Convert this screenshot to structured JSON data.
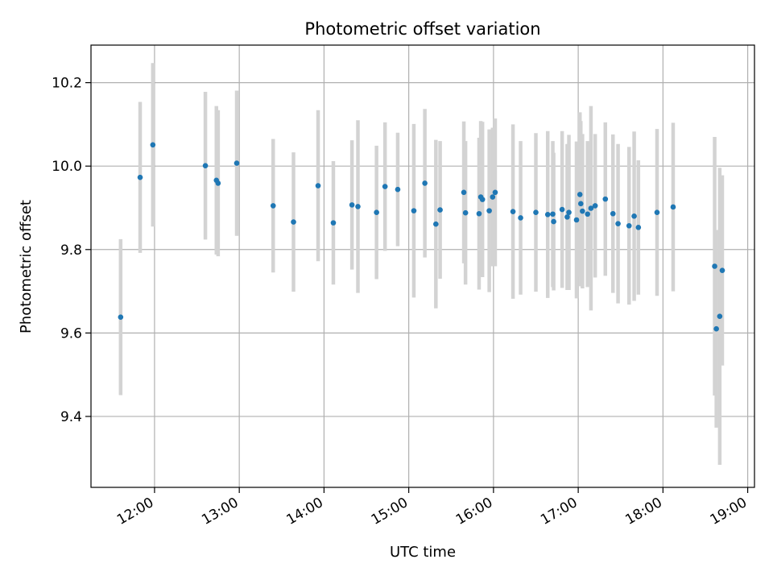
{
  "chart_data": {
    "type": "scatter",
    "title": "Photometric offset variation",
    "xlabel": "UTC time",
    "ylabel": "Photometric offset",
    "grid": true,
    "x_unit": "hours (UTC)",
    "xlim": [
      11.25,
      19.08
    ],
    "ylim": [
      9.23,
      10.29
    ],
    "x_ticks": [
      12,
      13,
      14,
      15,
      16,
      17,
      18,
      19
    ],
    "x_tick_labels": [
      "12:00",
      "13:00",
      "14:00",
      "15:00",
      "16:00",
      "17:00",
      "18:00",
      "19:00"
    ],
    "y_ticks": [
      9.4,
      9.6,
      9.8,
      10.0,
      10.2
    ],
    "y_tick_labels": [
      "9.4",
      "9.6",
      "9.8",
      "10.0",
      "10.2"
    ],
    "colors": {
      "point": "#1f77b4",
      "errorbar": "#d3d3d3",
      "grid": "#b0b0b0"
    },
    "series": [
      {
        "name": "Photometric offset",
        "x": [
          11.6,
          11.83,
          11.98,
          12.6,
          12.73,
          12.75,
          12.97,
          13.4,
          13.64,
          13.93,
          14.11,
          14.33,
          14.4,
          14.62,
          14.72,
          14.87,
          15.06,
          15.19,
          15.32,
          15.37,
          15.65,
          15.67,
          15.83,
          15.85,
          15.87,
          15.95,
          15.99,
          16.02,
          16.23,
          16.32,
          16.5,
          16.64,
          16.7,
          16.71,
          16.81,
          16.87,
          16.89,
          16.98,
          17.02,
          17.03,
          17.05,
          17.11,
          17.15,
          17.2,
          17.32,
          17.41,
          17.47,
          17.6,
          17.66,
          17.71,
          17.93,
          18.12,
          18.61,
          18.63,
          18.67,
          18.7
        ],
        "y": [
          9.638,
          9.973,
          10.051,
          10.001,
          9.966,
          9.959,
          10.007,
          9.905,
          9.866,
          9.953,
          9.864,
          9.907,
          9.903,
          9.889,
          9.951,
          9.944,
          9.893,
          9.959,
          9.861,
          9.895,
          9.937,
          9.888,
          9.886,
          9.926,
          9.92,
          9.893,
          9.926,
          9.937,
          9.891,
          9.876,
          9.889,
          9.884,
          9.885,
          9.867,
          9.896,
          9.878,
          9.889,
          9.871,
          9.932,
          9.91,
          9.892,
          9.885,
          9.899,
          9.905,
          9.921,
          9.886,
          9.862,
          9.857,
          9.88,
          9.853,
          9.889,
          9.902,
          9.76,
          9.61,
          9.64,
          9.75
        ],
        "yerr": [
          0.187,
          0.181,
          0.196,
          0.177,
          0.178,
          0.175,
          0.174,
          0.16,
          0.167,
          0.181,
          0.148,
          0.155,
          0.207,
          0.16,
          0.154,
          0.136,
          0.208,
          0.178,
          0.202,
          0.165,
          0.17,
          0.172,
          0.182,
          0.182,
          0.186,
          0.195,
          0.166,
          0.177,
          0.209,
          0.184,
          0.19,
          0.2,
          0.175,
          0.165,
          0.188,
          0.175,
          0.186,
          0.188,
          0.197,
          0.198,
          0.185,
          0.175,
          0.245,
          0.172,
          0.184,
          0.19,
          0.191,
          0.189,
          0.203,
          0.161,
          0.2,
          0.202,
          0.31,
          0.237,
          0.356,
          0.228
        ]
      }
    ]
  }
}
